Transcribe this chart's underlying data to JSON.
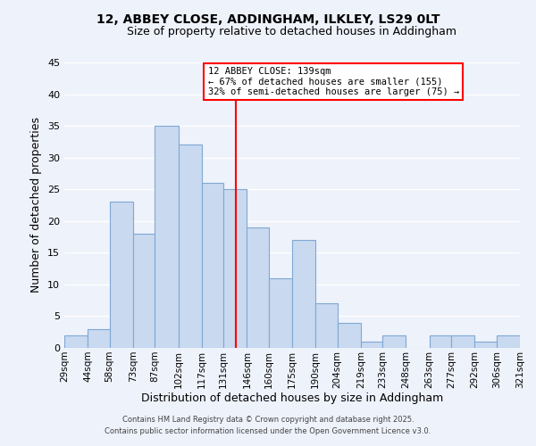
{
  "title": "12, ABBEY CLOSE, ADDINGHAM, ILKLEY, LS29 0LT",
  "subtitle": "Size of property relative to detached houses in Addingham",
  "xlabel": "Distribution of detached houses by size in Addingham",
  "ylabel": "Number of detached properties",
  "bar_edges": [
    29,
    44,
    58,
    73,
    87,
    102,
    117,
    131,
    146,
    160,
    175,
    190,
    204,
    219,
    233,
    248,
    263,
    277,
    292,
    306,
    321
  ],
  "bar_heights": [
    2,
    3,
    23,
    18,
    35,
    32,
    26,
    25,
    19,
    11,
    17,
    7,
    4,
    1,
    2,
    0,
    2,
    2,
    1,
    2
  ],
  "bar_color": "#c9d9f0",
  "bar_edgecolor": "#7fa8d4",
  "vline_x": 139,
  "vline_color": "red",
  "ylim": [
    0,
    45
  ],
  "annotation_title": "12 ABBEY CLOSE: 139sqm",
  "annotation_line1": "← 67% of detached houses are smaller (155)",
  "annotation_line2": "32% of semi-detached houses are larger (75) →",
  "footer1": "Contains HM Land Registry data © Crown copyright and database right 2025.",
  "footer2": "Contains public sector information licensed under the Open Government Licence v3.0.",
  "background_color": "#eef2fb",
  "grid_color": "#ffffff",
  "tick_labels": [
    "29sqm",
    "44sqm",
    "58sqm",
    "73sqm",
    "87sqm",
    "102sqm",
    "117sqm",
    "131sqm",
    "146sqm",
    "160sqm",
    "175sqm",
    "190sqm",
    "204sqm",
    "219sqm",
    "233sqm",
    "248sqm",
    "263sqm",
    "277sqm",
    "292sqm",
    "306sqm",
    "321sqm"
  ]
}
